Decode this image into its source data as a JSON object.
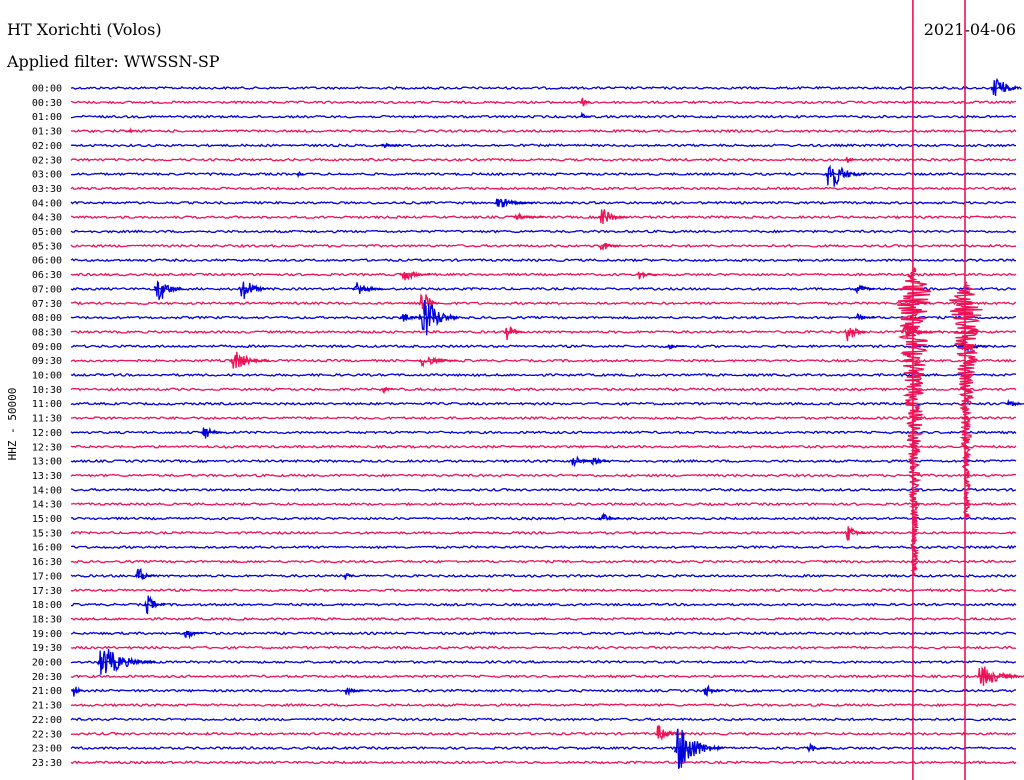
{
  "chart_data": {
    "type": "line",
    "title": "HT Xorichti (Volos)",
    "subtitle": "Applied filter: WWSSN-SP",
    "date": "2021-04-06",
    "ylabel": "HHZ - 50000",
    "row_labels": [
      "00:00",
      "00:30",
      "01:00",
      "01:30",
      "02:00",
      "02:30",
      "03:00",
      "03:30",
      "04:00",
      "04:30",
      "05:00",
      "05:30",
      "06:00",
      "06:30",
      "07:00",
      "07:30",
      "08:00",
      "08:30",
      "09:00",
      "09:30",
      "10:00",
      "10:30",
      "11:00",
      "11:30",
      "12:00",
      "12:30",
      "13:00",
      "13:30",
      "14:00",
      "14:30",
      "15:00",
      "15:30",
      "16:00",
      "16:30",
      "17:00",
      "17:30",
      "18:00",
      "18:30",
      "19:00",
      "19:30",
      "20:00",
      "20:30",
      "21:00",
      "21:30",
      "22:00",
      "22:30",
      "23:00",
      "23:30"
    ],
    "trace_colors": [
      "#0000dd",
      "#ee1155"
    ],
    "grid": false,
    "events": [
      {
        "row": 0,
        "x": 0.975,
        "amp": 14,
        "dur": 0.03
      },
      {
        "row": 1,
        "x": 0.54,
        "amp": 4,
        "dur": 0.01
      },
      {
        "row": 2,
        "x": 0.54,
        "amp": 3,
        "dur": 0.01
      },
      {
        "row": 3,
        "x": 0.06,
        "amp": 3,
        "dur": 0.01
      },
      {
        "row": 4,
        "x": 0.33,
        "amp": 2,
        "dur": 0.02
      },
      {
        "row": 5,
        "x": 0.82,
        "amp": 3,
        "dur": 0.01
      },
      {
        "row": 6,
        "x": 0.8,
        "amp": 14,
        "dur": 0.04
      },
      {
        "row": 6,
        "x": 0.24,
        "amp": 3,
        "dur": 0.005
      },
      {
        "row": 8,
        "x": 0.45,
        "amp": 5,
        "dur": 0.04
      },
      {
        "row": 9,
        "x": 0.56,
        "amp": 8,
        "dur": 0.03
      },
      {
        "row": 9,
        "x": 0.47,
        "amp": 3,
        "dur": 0.03
      },
      {
        "row": 11,
        "x": 0.56,
        "amp": 5,
        "dur": 0.02
      },
      {
        "row": 13,
        "x": 0.35,
        "amp": 6,
        "dur": 0.03
      },
      {
        "row": 13,
        "x": 0.6,
        "amp": 5,
        "dur": 0.02
      },
      {
        "row": 14,
        "x": 0.09,
        "amp": 13,
        "dur": 0.03
      },
      {
        "row": 14,
        "x": 0.18,
        "amp": 11,
        "dur": 0.03
      },
      {
        "row": 14,
        "x": 0.3,
        "amp": 8,
        "dur": 0.03
      },
      {
        "row": 14,
        "x": 0.83,
        "amp": 7,
        "dur": 0.02
      },
      {
        "row": 15,
        "x": 0.37,
        "amp": 14,
        "dur": 0.02
      },
      {
        "row": 16,
        "x": 0.37,
        "amp": 22,
        "dur": 0.04
      },
      {
        "row": 16,
        "x": 0.35,
        "amp": 5,
        "dur": 0.02
      },
      {
        "row": 16,
        "x": 0.83,
        "amp": 4,
        "dur": 0.02
      },
      {
        "row": 17,
        "x": 0.46,
        "amp": 8,
        "dur": 0.02
      },
      {
        "row": 17,
        "x": 0.82,
        "amp": 10,
        "dur": 0.02
      },
      {
        "row": 17,
        "x": 0.88,
        "amp": 6,
        "dur": 0.04
      },
      {
        "row": 18,
        "x": 0.63,
        "amp": 3,
        "dur": 0.02
      },
      {
        "row": 18,
        "x": 0.94,
        "amp": 7,
        "dur": 0.03
      },
      {
        "row": 19,
        "x": 0.17,
        "amp": 9,
        "dur": 0.04
      },
      {
        "row": 19,
        "x": 0.37,
        "amp": 5,
        "dur": 0.04
      },
      {
        "row": 21,
        "x": 0.33,
        "amp": 5,
        "dur": 0.01
      },
      {
        "row": 22,
        "x": 0.99,
        "amp": 4,
        "dur": 0.02
      },
      {
        "row": 24,
        "x": 0.14,
        "amp": 8,
        "dur": 0.02
      },
      {
        "row": 26,
        "x": 0.53,
        "amp": 6,
        "dur": 0.02
      },
      {
        "row": 26,
        "x": 0.55,
        "amp": 5,
        "dur": 0.02
      },
      {
        "row": 30,
        "x": 0.56,
        "amp": 5,
        "dur": 0.02
      },
      {
        "row": 31,
        "x": 0.82,
        "amp": 9,
        "dur": 0.02
      },
      {
        "row": 34,
        "x": 0.07,
        "amp": 8,
        "dur": 0.02
      },
      {
        "row": 34,
        "x": 0.29,
        "amp": 4,
        "dur": 0.01
      },
      {
        "row": 36,
        "x": 0.08,
        "amp": 9,
        "dur": 0.02
      },
      {
        "row": 38,
        "x": 0.12,
        "amp": 6,
        "dur": 0.02
      },
      {
        "row": 40,
        "x": 0.03,
        "amp": 14,
        "dur": 0.06
      },
      {
        "row": 41,
        "x": 0.96,
        "amp": 10,
        "dur": 0.05
      },
      {
        "row": 42,
        "x": 0.003,
        "amp": 8,
        "dur": 0.01
      },
      {
        "row": 42,
        "x": 0.29,
        "amp": 4,
        "dur": 0.02
      },
      {
        "row": 42,
        "x": 0.67,
        "amp": 5,
        "dur": 0.02
      },
      {
        "row": 45,
        "x": 0.62,
        "amp": 8,
        "dur": 0.03
      },
      {
        "row": 46,
        "x": 0.64,
        "amp": 22,
        "dur": 0.05
      },
      {
        "row": 46,
        "x": 0.78,
        "amp": 4,
        "dur": 0.02
      }
    ],
    "mainshocks": [
      {
        "x": 0.89,
        "row_start": 12.5,
        "row_end": 34,
        "amp": 20
      },
      {
        "x": 0.945,
        "row_start": 13.5,
        "row_end": 30,
        "amp": 18
      }
    ]
  }
}
